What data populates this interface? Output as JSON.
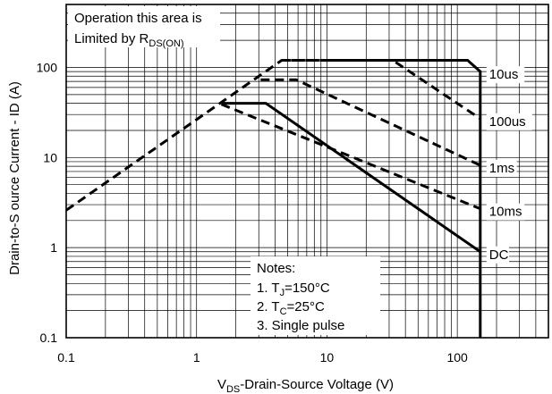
{
  "chart_data": {
    "type": "line",
    "title": "",
    "xlabel": {
      "prefix": "V",
      "sub": "DS",
      "rest": "-Drain-Source Voltage (V)"
    },
    "ylabel": "Drain-to-S ource Current - ID (A)",
    "xscale": "log",
    "yscale": "log",
    "xlim": [
      0.1,
      500
    ],
    "ylim": [
      0.1,
      500
    ],
    "grid": true,
    "x_ticks": [
      {
        "value": 0.1,
        "label": "0.1"
      },
      {
        "value": 1,
        "label": "1"
      },
      {
        "value": 10,
        "label": "10"
      },
      {
        "value": 100,
        "label": "100"
      }
    ],
    "y_ticks": [
      {
        "value": 0.1,
        "label": "0.1"
      },
      {
        "value": 1,
        "label": "1"
      },
      {
        "value": 10,
        "label": "10"
      },
      {
        "value": 100,
        "label": "100"
      }
    ],
    "annotation": {
      "line1": "Operation this area is",
      "line2_prefix": "Limited  by R",
      "line2_sub": "DS(ON)"
    },
    "notes": {
      "title": "Notes:",
      "n1_prefix": "1. T",
      "n1_sub": "J",
      "n1_rest": "=150°C",
      "n2_prefix": "2. T",
      "n2_sub": "C",
      "n2_rest": "=25°C",
      "n3": "3. Single pulse"
    },
    "series": [
      {
        "name": "10us",
        "style": "solid",
        "points": [
          [
            10.5,
            120
          ],
          [
            120,
            120
          ],
          [
            150,
            90
          ],
          [
            150,
            0.1
          ]
        ]
      },
      {
        "name": "10us",
        "style": "dashed",
        "points": [
          [
            0.1,
            2.6
          ],
          [
            4.5,
            120
          ],
          [
            10.5,
            120
          ]
        ]
      },
      {
        "name": "100us",
        "style": "dashed",
        "points": [
          [
            4.5,
            120
          ],
          [
            32,
            120
          ],
          [
            150,
            27
          ]
        ]
      },
      {
        "name": "1ms",
        "style": "dashed",
        "points": [
          [
            3.1,
            73
          ],
          [
            5.8,
            73
          ],
          [
            150,
            8.2
          ]
        ]
      },
      {
        "name": "10ms",
        "style": "dashed",
        "points": [
          [
            1.55,
            39
          ],
          [
            150,
            2.7
          ]
        ]
      },
      {
        "name": "DC",
        "style": "solid",
        "points": [
          [
            1.55,
            40
          ],
          [
            3.4,
            40
          ],
          [
            150,
            0.9
          ]
        ]
      }
    ],
    "series_labels": [
      {
        "text": "10us",
        "x": 150,
        "y": 90
      },
      {
        "text": "100us",
        "x": 150,
        "y": 27
      },
      {
        "text": "1ms",
        "x": 150,
        "y": 8.2
      },
      {
        "text": "10ms",
        "x": 150,
        "y": 2.7
      },
      {
        "text": "DC",
        "x": 150,
        "y": 0.9
      }
    ]
  }
}
